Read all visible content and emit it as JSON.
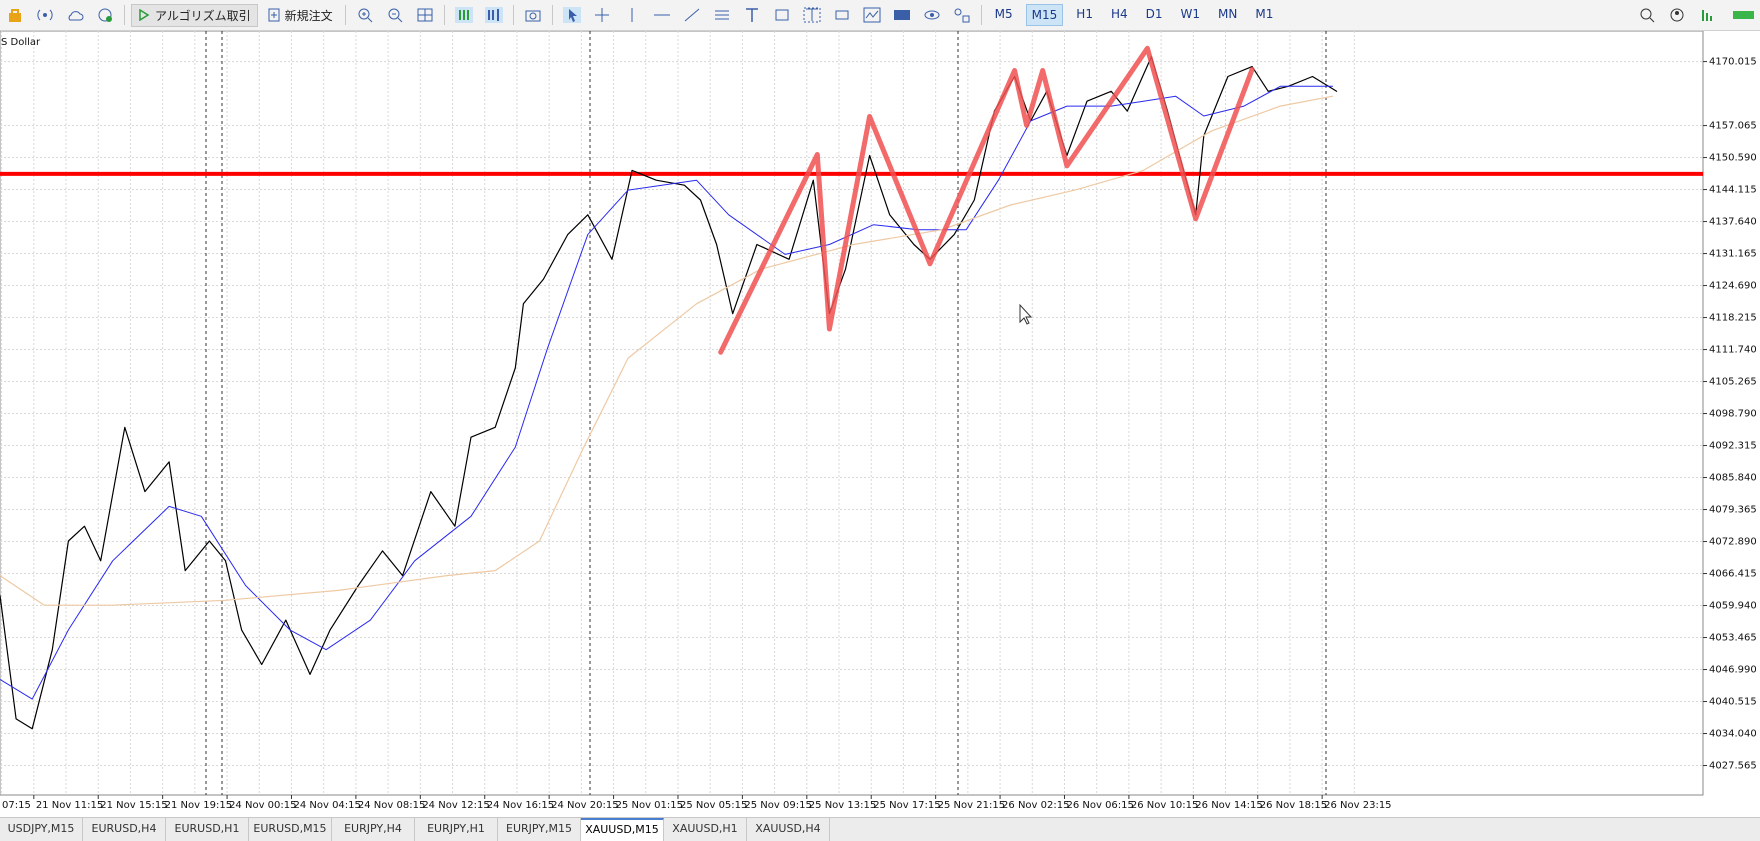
{
  "toolbar": {
    "algo_trading": "アルゴリズム取引",
    "new_order": "新規注文",
    "timeframes": [
      "M5",
      "M15",
      "H1",
      "H4",
      "D1",
      "W1",
      "MN",
      "M1"
    ],
    "active_timeframe": 1
  },
  "chart_data": {
    "type": "line",
    "title": "S Dollar",
    "xlim": [
      0,
      423
    ],
    "ylim": [
      4021.6,
      4176.2
    ],
    "grid": true,
    "xticks": [
      {
        "value": -7.6,
        "label": "07:15"
      },
      {
        "value": 8.4,
        "label": "21 Nov 11:15"
      },
      {
        "value": 24.4,
        "label": "21 Nov 15:15"
      },
      {
        "value": 40.4,
        "label": "21 Nov 19:15"
      },
      {
        "value": 56.4,
        "label": "24 Nov 00:15"
      },
      {
        "value": 72.4,
        "label": "24 Nov 04:15"
      },
      {
        "value": 88.4,
        "label": "24 Nov 08:15"
      },
      {
        "value": 104.4,
        "label": "24 Nov 12:15"
      },
      {
        "value": 120.4,
        "label": "24 Nov 16:15"
      },
      {
        "value": 136.4,
        "label": "24 Nov 20:15"
      },
      {
        "value": 152.4,
        "label": "25 Nov 01:15"
      },
      {
        "value": 168.4,
        "label": "25 Nov 05:15"
      },
      {
        "value": 184.4,
        "label": "25 Nov 09:15"
      },
      {
        "value": 200.4,
        "label": "25 Nov 13:15"
      },
      {
        "value": 216.4,
        "label": "25 Nov 17:15"
      },
      {
        "value": 232.4,
        "label": "25 Nov 21:15"
      },
      {
        "value": 248.4,
        "label": "26 Nov 02:15"
      },
      {
        "value": 264.4,
        "label": "26 Nov 06:15"
      },
      {
        "value": 280.4,
        "label": "26 Nov 10:15"
      },
      {
        "value": 296.4,
        "label": "26 Nov 14:15"
      },
      {
        "value": 312.4,
        "label": "26 Nov 18:15"
      },
      {
        "value": 328.4,
        "label": "26 Nov 23:15"
      }
    ],
    "yticks": [
      4170.015,
      4157.065,
      {
        "value": 4150.59,
        "label": "4150.590"
      },
      4144.115,
      {
        "value": 4137.64,
        "label": "4137.640"
      },
      4131.165,
      {
        "value": 4124.69,
        "label": "4124.690"
      },
      4118.215,
      {
        "value": 4111.74,
        "label": "4111.740"
      },
      4105.265,
      {
        "value": 4098.79,
        "label": "4098.790"
      },
      4092.315,
      {
        "value": 4085.84,
        "label": "4085.840"
      },
      4079.365,
      {
        "value": 4072.89,
        "label": "4072.890"
      },
      4066.415,
      {
        "value": 4059.94,
        "label": "4059.940"
      },
      4053.465,
      {
        "value": 4046.99,
        "label": "4046.990"
      },
      4040.515,
      {
        "value": 4034.04,
        "label": "4034.040"
      },
      4027.565
    ],
    "series": [
      {
        "color": "#000000",
        "line_width": 1.2,
        "x": [
          0,
          4,
          8,
          13,
          17,
          21,
          25,
          31,
          36,
          42,
          46,
          52,
          56,
          60,
          65,
          71,
          77,
          82,
          89,
          95,
          100,
          107,
          113,
          117,
          123,
          128,
          130,
          135,
          141,
          146,
          152,
          157,
          163,
          170,
          174,
          178,
          182,
          188,
          196,
          202,
          206,
          210,
          216,
          221,
          227,
          231,
          237,
          242,
          247,
          252,
          256,
          260,
          265,
          270,
          276,
          280,
          286,
          290,
          294,
          297,
          299,
          305,
          311,
          315,
          320,
          326,
          332
        ],
        "values": [
          4062,
          4037,
          4035,
          4051,
          4073,
          4076,
          4069,
          4096,
          4083,
          4089,
          4067,
          4073,
          4069,
          4055,
          4048,
          4057,
          4046,
          4055,
          4064,
          4071,
          4066,
          4083,
          4076,
          4094,
          4096,
          4108,
          4121,
          4126,
          4135,
          4139,
          4130,
          4148,
          4146,
          4145,
          4142,
          4133,
          4119,
          4133,
          4130,
          4146,
          4119,
          4128,
          4151,
          4139,
          4133,
          4130,
          4135,
          4142,
          4160,
          4167,
          4158,
          4164,
          4151,
          4162,
          4164,
          4160,
          4171,
          4160,
          4148,
          4139,
          4155,
          4167,
          4169,
          4164,
          4165,
          4167,
          4164
        ]
      },
      {
        "color": "#2a2af0",
        "line_width": 1,
        "x": [
          0,
          8,
          17,
          28,
          42,
          50,
          61,
          72,
          81,
          92,
          103,
          117,
          128,
          136,
          146,
          156,
          173,
          181,
          195,
          206,
          217,
          228,
          240,
          248,
          256,
          265,
          276,
          284,
          292,
          299,
          309,
          318,
          331
        ],
        "values": [
          4045,
          4041,
          4055,
          4069,
          4080,
          4078,
          4064,
          4055,
          4051,
          4057,
          4069,
          4078,
          4092,
          4112,
          4135,
          4144,
          4146,
          4139,
          4131,
          4133,
          4137,
          4136,
          4136,
          4146,
          4158,
          4161,
          4161,
          4162,
          4163,
          4159,
          4161,
          4165,
          4165
        ]
      },
      {
        "color": "#eec9a4",
        "line_width": 1.2,
        "x": [
          0,
          11,
          28,
          56,
          84,
          111,
          123,
          134,
          145,
          156,
          173,
          189,
          212,
          234,
          251,
          267,
          284,
          301,
          318,
          331
        ],
        "values": [
          4066,
          4060,
          4060,
          4061,
          4063,
          4066,
          4067,
          4073,
          4092,
          4110,
          4121,
          4128,
          4133,
          4136,
          4141,
          4144,
          4148,
          4156,
          4161,
          4163
        ]
      },
      {
        "color": "#f05050",
        "line_width": 5,
        "x": [
          179,
          203,
          206,
          216,
          231,
          252,
          255,
          259,
          265,
          285,
          297,
          311
        ],
        "values": [
          4111.2,
          4151.2,
          4115.9,
          4158.9,
          4129.1,
          4168.2,
          4157.1,
          4168.2,
          4148.9,
          4172.7,
          4138.2,
          4168.4
        ]
      }
    ],
    "hline": {
      "value": 4147.3,
      "color": "#ff0000"
    }
  },
  "tabs": {
    "items": [
      "USDJPY,M15",
      "EURUSD,H4",
      "EURUSD,H1",
      "EURUSD,M15",
      "EURJPY,H4",
      "EURJPY,H1",
      "EURJPY,M15",
      "XAUUSD,M15",
      "XAUUSD,H1",
      "XAUUSD,H4"
    ],
    "active": 7
  }
}
